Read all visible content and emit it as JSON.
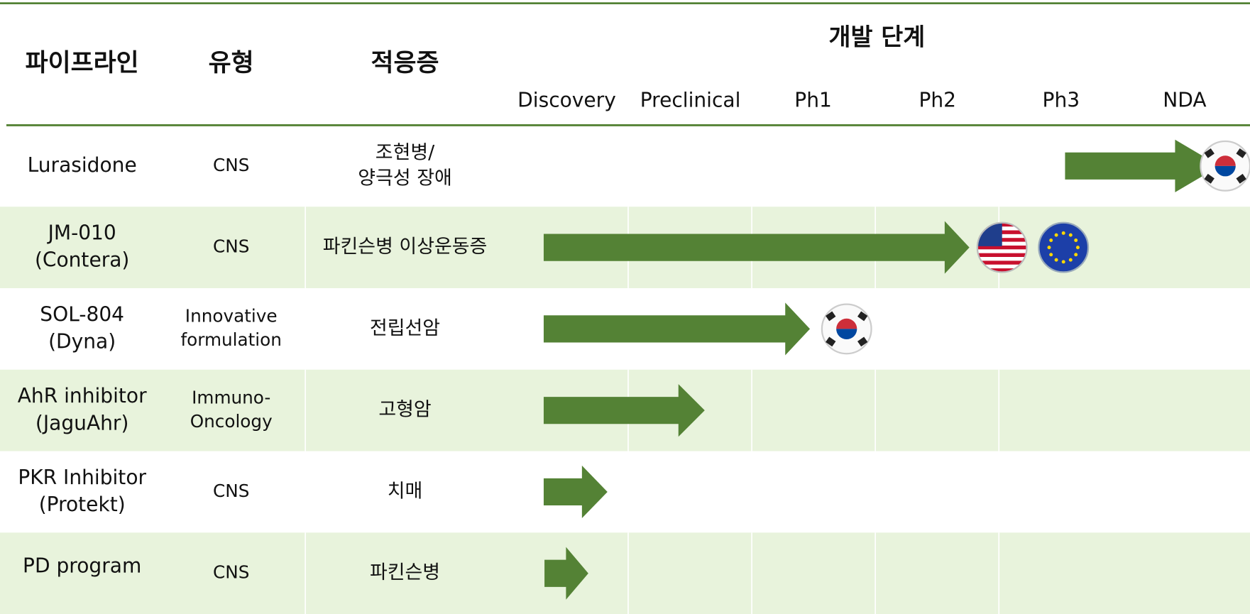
{
  "header": {
    "columns": [
      "파이프라인",
      "유형",
      "적응증"
    ],
    "stage_group": "개발 단계",
    "stages": [
      "Discovery",
      "Preclinical",
      "Ph1",
      "Ph2",
      "Ph3",
      "NDA"
    ]
  },
  "rows": [
    {
      "name": [
        "Lurasidone"
      ],
      "type": [
        "CNS"
      ],
      "indication": [
        "조현병/",
        "양극성 장애"
      ]
    },
    {
      "name": [
        "JM-010",
        "(Contera)"
      ],
      "type": [
        "CNS"
      ],
      "indication": [
        "파킨슨병 이상운동증"
      ]
    },
    {
      "name": [
        "SOL-804",
        "(Dyna)"
      ],
      "type": [
        "Innovative",
        "formulation"
      ],
      "indication": [
        "전립선암"
      ]
    },
    {
      "name": [
        "AhR inhibitor",
        "(JaguAhr)"
      ],
      "type": [
        "Immuno-",
        "Oncology"
      ],
      "indication": [
        "고형암"
      ]
    },
    {
      "name": [
        "PKR Inhibitor",
        "(Protekt)"
      ],
      "type": [
        "CNS"
      ],
      "indication": [
        "치매"
      ]
    },
    {
      "name": [
        "PD program"
      ],
      "type": [
        "CNS"
      ],
      "indication": [
        "파킨슨병"
      ]
    }
  ]
}
